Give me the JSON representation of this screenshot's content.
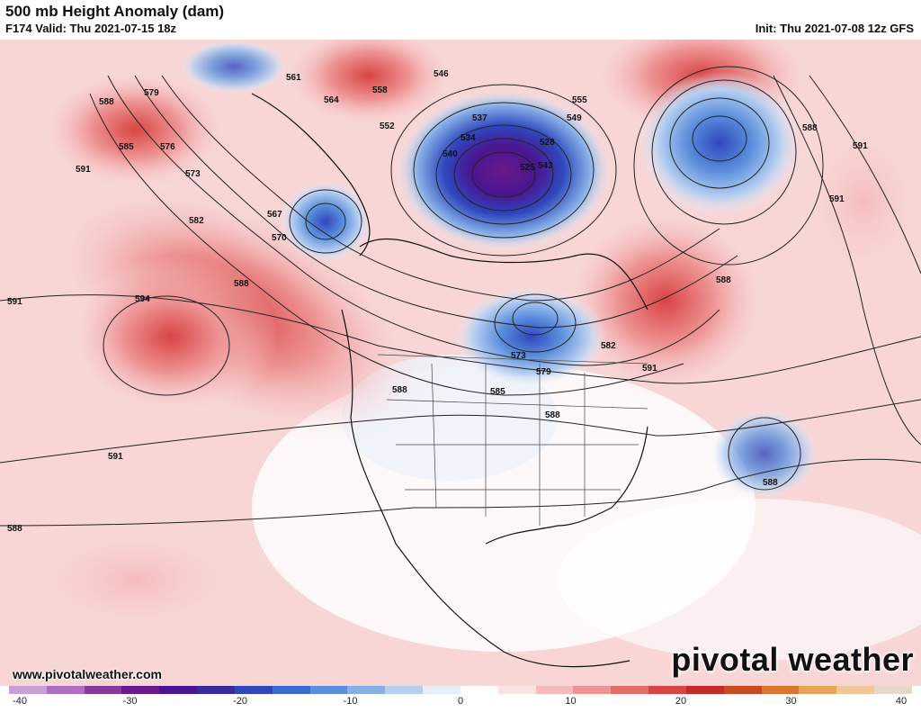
{
  "header": {
    "title": "500 mb Height Anomaly (dam)",
    "valid": "F174 Valid: Thu 2021-07-15 18z",
    "init": "Init: Thu 2021-07-08 12z GFS"
  },
  "footer": {
    "website": "www.pivotalweather.com",
    "logo": "pivotal weather"
  },
  "colorbar": {
    "ticks": [
      "-40",
      "-30",
      "-20",
      "-10",
      "0",
      "10",
      "20",
      "30",
      "40"
    ],
    "colors": [
      "#c8a0d8",
      "#b070c0",
      "#8a3a9a",
      "#6a1a8a",
      "#4a1590",
      "#3a2aa0",
      "#2f47bd",
      "#3c6ad0",
      "#5b8fdc",
      "#86b0e6",
      "#b7cff0",
      "#e8eef8",
      "#ffffff",
      "#fbe3e3",
      "#f5bcbc",
      "#ee9494",
      "#e56b6b",
      "#d94444",
      "#c82828",
      "#c84a1e",
      "#d87830",
      "#e6a458",
      "#f0c898",
      "#e8d8c8"
    ]
  },
  "contour_labels": [
    "588",
    "579",
    "585",
    "576",
    "573",
    "591",
    "582",
    "567",
    "570",
    "564",
    "561",
    "552",
    "546",
    "558",
    "555",
    "549",
    "537",
    "534",
    "543",
    "528",
    "525",
    "540",
    "594",
    "591",
    "588",
    "588",
    "588",
    "591",
    "591",
    "588",
    "573",
    "579",
    "582",
    "585",
    "588",
    "591",
    "591",
    "588",
    "588"
  ],
  "legend_values": {
    "min": -40,
    "max": 40,
    "units": "dam"
  }
}
